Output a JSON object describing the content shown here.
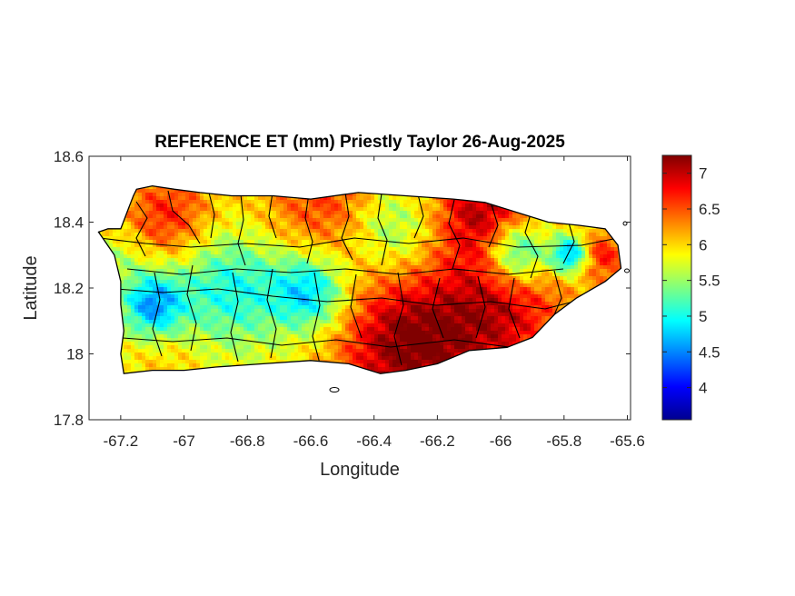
{
  "chart_data": {
    "type": "heatmap",
    "title": "REFERENCE ET (mm) Priestly Taylor 26-Aug-2025",
    "xlabel": "Longitude",
    "ylabel": "Latitude",
    "xlim": [
      -67.3,
      -65.59
    ],
    "ylim": [
      17.8,
      18.6
    ],
    "xticks": [
      -67.2,
      -67,
      -66.8,
      -66.6,
      -66.4,
      -66.2,
      -66,
      -65.8,
      -65.6
    ],
    "xtick_labels": [
      "-67.2",
      "-67",
      "-66.8",
      "-66.6",
      "-66.4",
      "-66.2",
      "-66",
      "-65.8",
      "-65.6"
    ],
    "yticks": [
      17.8,
      18,
      18.2,
      18.4,
      18.6
    ],
    "ytick_labels": [
      "17.8",
      "18",
      "18.2",
      "18.4",
      "18.6"
    ],
    "colorbar": {
      "colormap": "jet",
      "range": [
        3.55,
        7.25
      ],
      "ticks": [
        4,
        4.5,
        5,
        5.5,
        6,
        6.5,
        7
      ],
      "tick_labels": [
        "4",
        "4.5",
        "5",
        "5.5",
        "6",
        "6.5",
        "7"
      ]
    },
    "island_outline_lonlat": [
      [
        -67.27,
        18.37
      ],
      [
        -67.24,
        18.38
      ],
      [
        -67.2,
        18.38
      ],
      [
        -67.18,
        18.43
      ],
      [
        -67.16,
        18.48
      ],
      [
        -67.15,
        18.5
      ],
      [
        -67.1,
        18.51
      ],
      [
        -67.03,
        18.5
      ],
      [
        -66.95,
        18.49
      ],
      [
        -66.85,
        18.48
      ],
      [
        -66.72,
        18.48
      ],
      [
        -66.6,
        18.47
      ],
      [
        -66.45,
        18.49
      ],
      [
        -66.3,
        18.48
      ],
      [
        -66.15,
        18.47
      ],
      [
        -66.05,
        18.46
      ],
      [
        -65.95,
        18.43
      ],
      [
        -65.85,
        18.4
      ],
      [
        -65.75,
        18.39
      ],
      [
        -65.67,
        18.38
      ],
      [
        -65.63,
        18.33
      ],
      [
        -65.62,
        18.26
      ],
      [
        -65.67,
        18.22
      ],
      [
        -65.76,
        18.17
      ],
      [
        -65.83,
        18.12
      ],
      [
        -65.9,
        18.05
      ],
      [
        -65.98,
        18.02
      ],
      [
        -66.1,
        18.01
      ],
      [
        -66.2,
        17.97
      ],
      [
        -66.3,
        17.95
      ],
      [
        -66.38,
        17.94
      ],
      [
        -66.48,
        17.97
      ],
      [
        -66.6,
        17.98
      ],
      [
        -66.75,
        17.97
      ],
      [
        -66.9,
        17.96
      ],
      [
        -67.0,
        17.95
      ],
      [
        -67.1,
        17.95
      ],
      [
        -67.19,
        17.94
      ],
      [
        -67.2,
        18.0
      ],
      [
        -67.19,
        18.07
      ],
      [
        -67.2,
        18.15
      ],
      [
        -67.2,
        18.22
      ],
      [
        -67.22,
        18.3
      ],
      [
        -67.27,
        18.37
      ]
    ],
    "field_model": {
      "base_value": 5.9,
      "features": [
        {
          "lon": -66.3,
          "lat": 18.02,
          "value": 7.2,
          "radius": 0.22
        },
        {
          "lon": -66.0,
          "lat": 18.13,
          "value": 6.9,
          "radius": 0.22
        },
        {
          "lon": -66.05,
          "lat": 18.44,
          "value": 7.0,
          "radius": 0.16
        },
        {
          "lon": -66.55,
          "lat": 18.46,
          "value": 6.6,
          "radius": 0.22
        },
        {
          "lon": -67.05,
          "lat": 18.42,
          "value": 6.7,
          "radius": 0.14
        },
        {
          "lon": -65.68,
          "lat": 18.3,
          "value": 6.7,
          "radius": 0.08
        },
        {
          "lon": -67.05,
          "lat": 17.98,
          "value": 6.1,
          "radius": 0.12
        },
        {
          "lon": -66.85,
          "lat": 18.2,
          "value": 5.0,
          "radius": 0.18
        },
        {
          "lon": -66.6,
          "lat": 18.19,
          "value": 4.7,
          "radius": 0.12
        },
        {
          "lon": -67.1,
          "lat": 18.15,
          "value": 4.6,
          "radius": 0.1
        },
        {
          "lon": -66.35,
          "lat": 18.38,
          "value": 5.2,
          "radius": 0.14
        },
        {
          "lon": -65.95,
          "lat": 18.31,
          "value": 4.5,
          "radius": 0.1
        },
        {
          "lon": -65.78,
          "lat": 18.3,
          "value": 4.4,
          "radius": 0.06
        },
        {
          "lon": -67.2,
          "lat": 18.3,
          "value": 5.6,
          "radius": 0.08
        }
      ]
    }
  }
}
